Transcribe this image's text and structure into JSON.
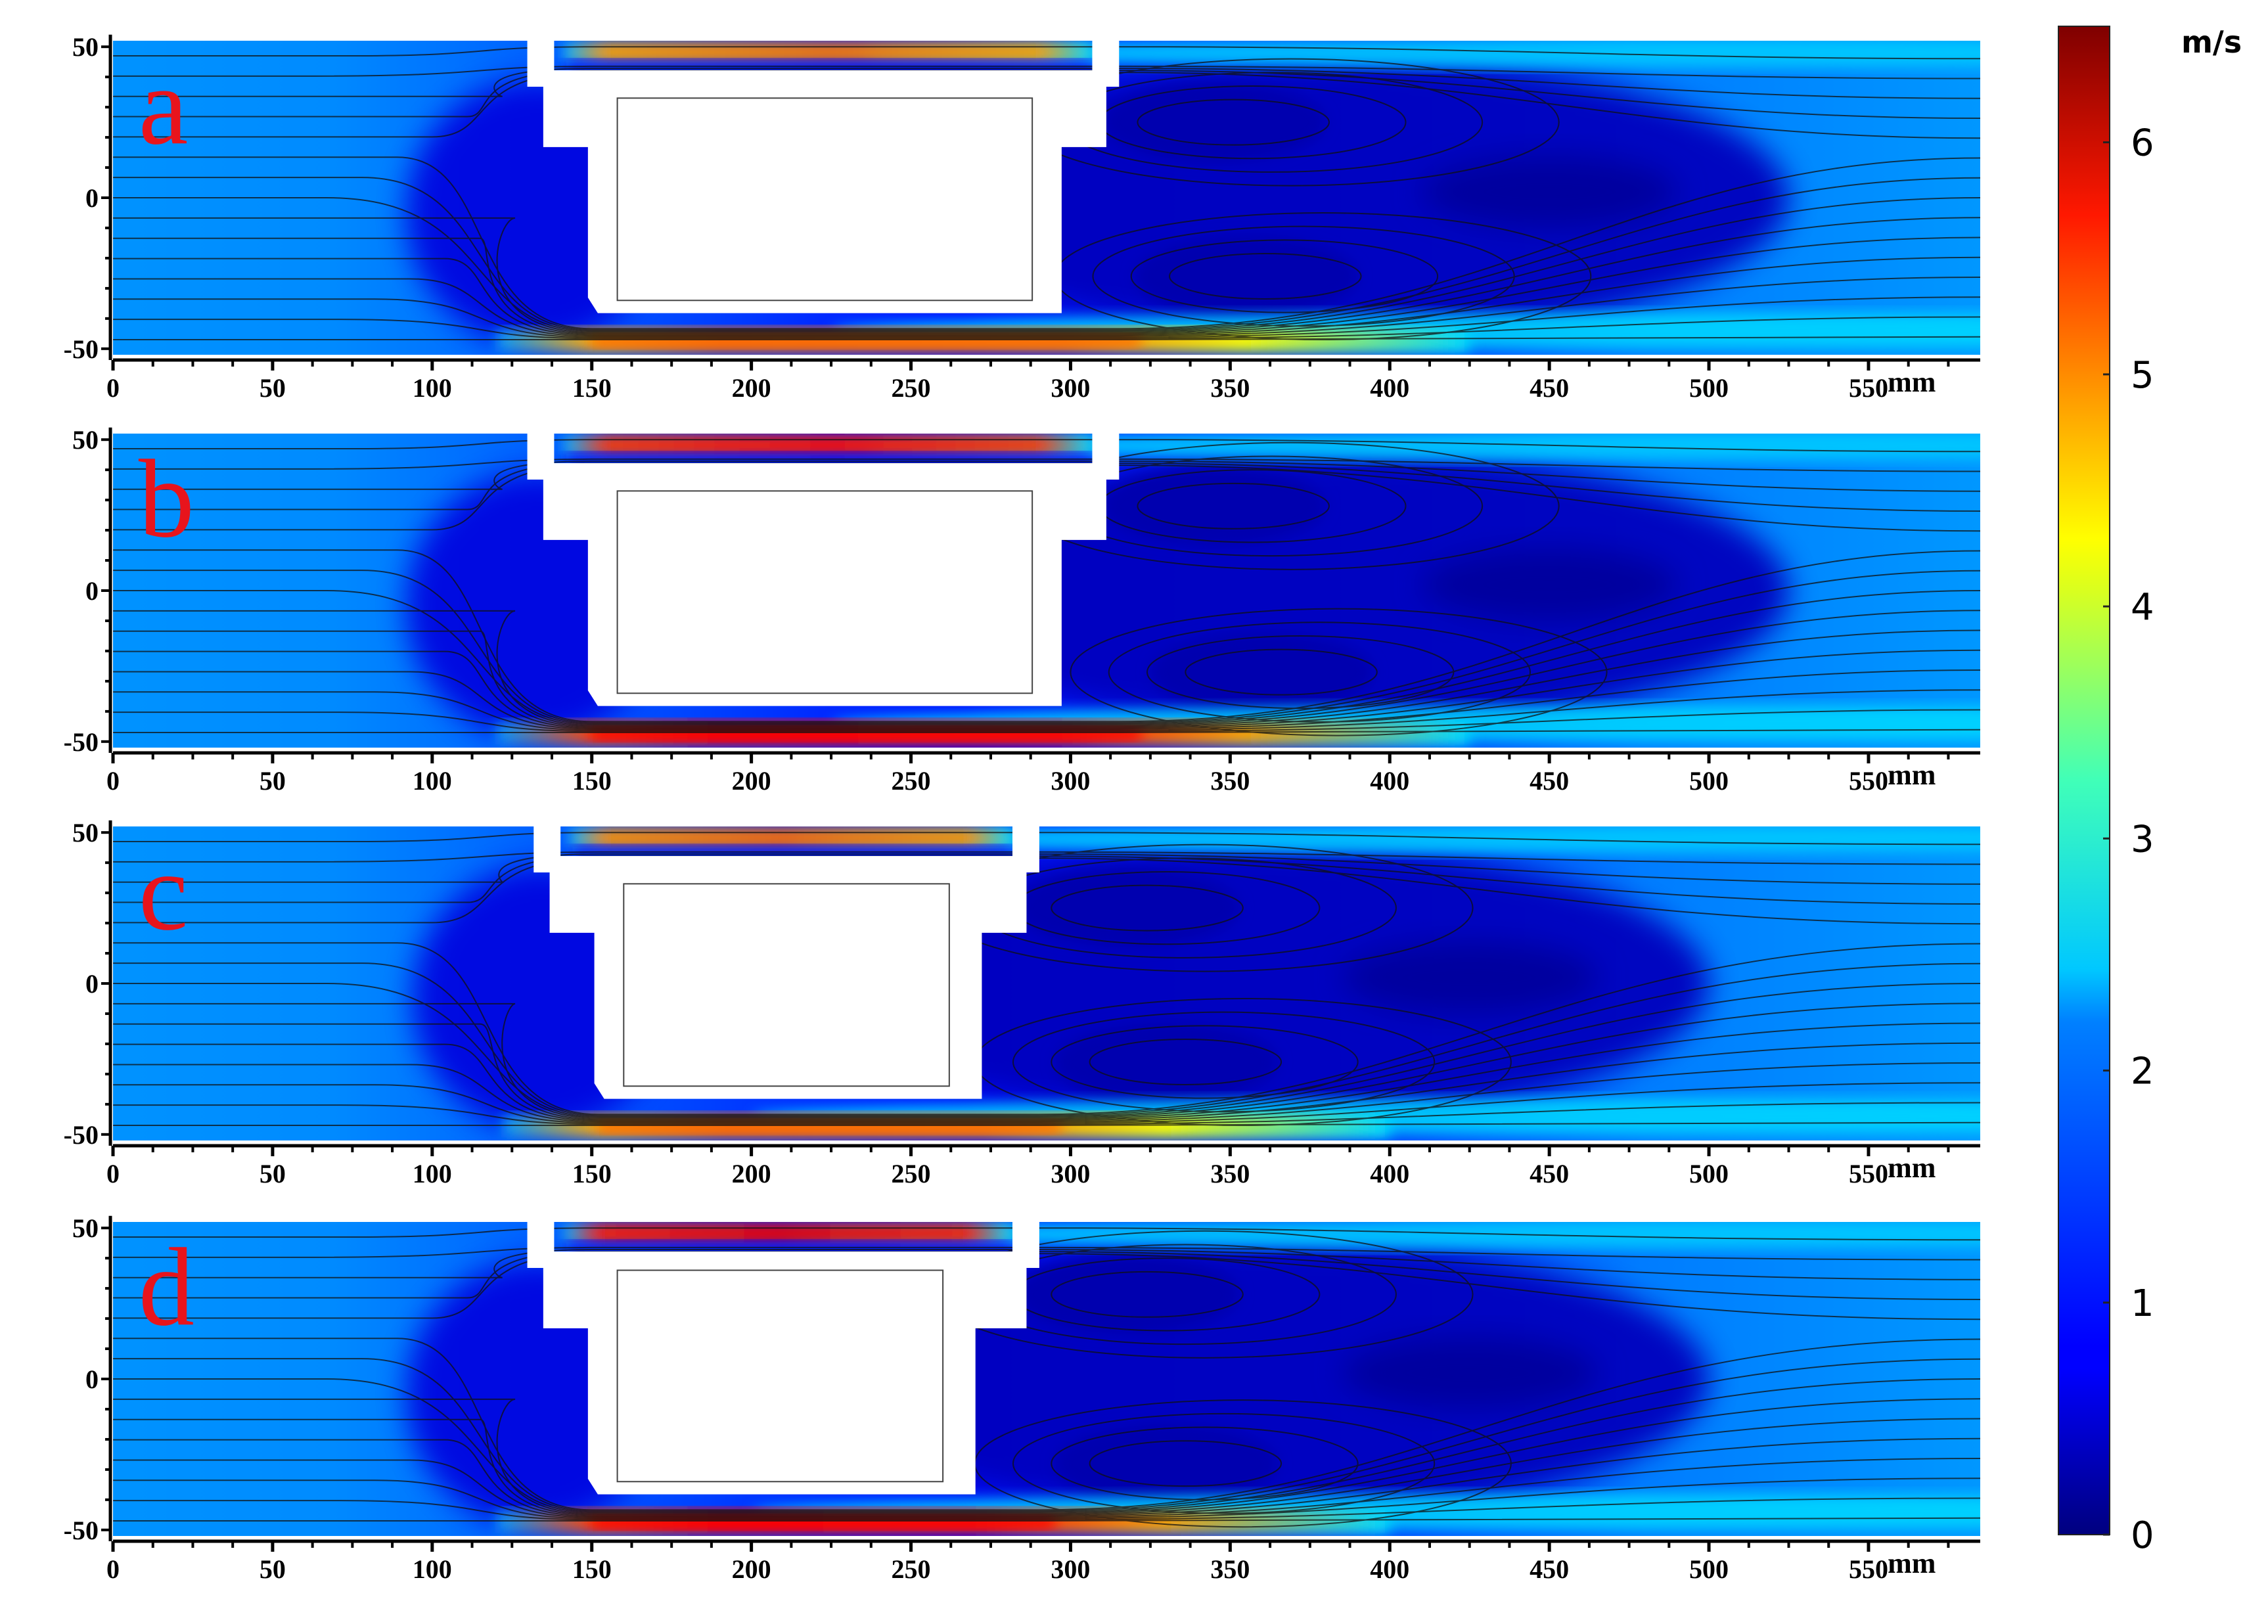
{
  "chart_data": [
    {
      "type": "heatmap",
      "panel_label": "a",
      "x_unit": "mm",
      "xlim": [
        0,
        585
      ],
      "ylim": [
        -52,
        52
      ],
      "x_ticks": [
        0,
        50,
        100,
        150,
        200,
        250,
        300,
        350,
        400,
        450,
        500,
        550
      ],
      "y_ticks": [
        50,
        0,
        -50
      ],
      "body": {
        "x_start": 130,
        "x_end": 315,
        "x_tail": 297,
        "inner_x": [
          158,
          288
        ],
        "inner_y": [
          -34,
          33
        ]
      },
      "gap_top_peak": 4.9,
      "gap_bottom_peak": 5.0,
      "wake_vortices": [
        [
          345,
          25
        ],
        [
          355,
          -26
        ]
      ]
    },
    {
      "type": "heatmap",
      "panel_label": "b",
      "x_unit": "mm",
      "xlim": [
        0,
        585
      ],
      "ylim": [
        -52,
        52
      ],
      "x_ticks": [
        0,
        50,
        100,
        150,
        200,
        250,
        300,
        350,
        400,
        450,
        500,
        550
      ],
      "y_ticks": [
        50,
        0,
        -50
      ],
      "body": {
        "x_start": 130,
        "x_end": 315,
        "x_tail": 297,
        "inner_x": [
          158,
          288
        ],
        "inner_y": [
          -34,
          33
        ]
      },
      "gap_top_peak": 5.6,
      "gap_bottom_peak": 5.7,
      "wake_vortices": [
        [
          345,
          28
        ],
        [
          360,
          -27
        ]
      ]
    },
    {
      "type": "heatmap",
      "panel_label": "c",
      "x_unit": "mm",
      "xlim": [
        0,
        585
      ],
      "ylim": [
        -52,
        52
      ],
      "x_ticks": [
        0,
        50,
        100,
        150,
        200,
        250,
        300,
        350,
        400,
        450,
        500,
        550
      ],
      "y_ticks": [
        50,
        0,
        -50
      ],
      "body": {
        "x_start": 132,
        "x_end": 290,
        "x_tail": 272,
        "inner_x": [
          160,
          262
        ],
        "inner_y": [
          -34,
          33
        ]
      },
      "gap_top_peak": 5.0,
      "gap_bottom_peak": 5.0,
      "wake_vortices": [
        [
          318,
          25
        ],
        [
          330,
          -26
        ]
      ]
    },
    {
      "type": "heatmap",
      "panel_label": "d",
      "x_unit": "mm",
      "xlim": [
        0,
        585
      ],
      "ylim": [
        -52,
        52
      ],
      "x_ticks": [
        0,
        50,
        100,
        150,
        200,
        250,
        300,
        350,
        400,
        450,
        500,
        550
      ],
      "y_ticks": [
        50,
        0,
        -50
      ],
      "body": {
        "x_start": 130,
        "x_end": 290,
        "x_tail": 270,
        "inner_x": [
          158,
          260
        ],
        "inner_y": [
          -34,
          36
        ]
      },
      "gap_top_peak": 5.8,
      "gap_bottom_peak": 5.7,
      "wake_vortices": [
        [
          318,
          28
        ],
        [
          330,
          -28
        ]
      ]
    }
  ],
  "colorbar": {
    "unit": "m/s",
    "range": [
      0,
      6.5
    ],
    "ticks": [
      0,
      1,
      2,
      3,
      4,
      5,
      6
    ],
    "colormap": "jet"
  }
}
